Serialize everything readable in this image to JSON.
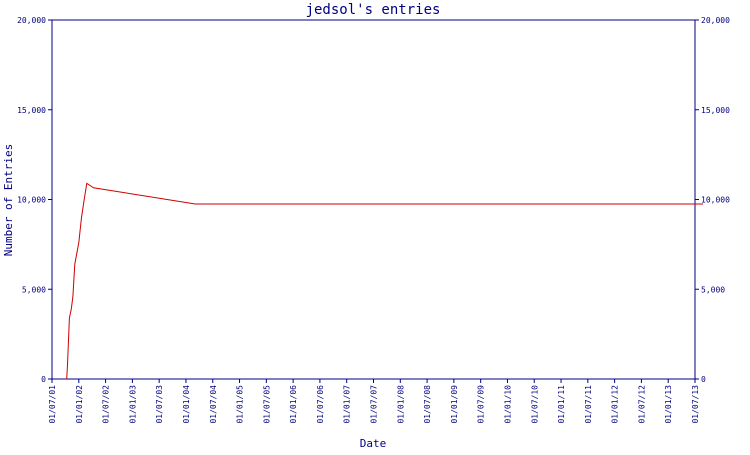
{
  "chart_data": {
    "type": "line",
    "title": "jedsol's entries",
    "xlabel": "Date",
    "ylabel": "Number of Entries",
    "ylim": [
      0,
      20000
    ],
    "y_ticks": [
      {
        "value": 0,
        "label": "0"
      },
      {
        "value": 5000,
        "label": "5,000"
      },
      {
        "value": 10000,
        "label": "10,000"
      },
      {
        "value": 15000,
        "label": "15,000"
      },
      {
        "value": 20000,
        "label": "20,000"
      }
    ],
    "x_ticks": [
      "01/07/01",
      "01/01/02",
      "01/07/02",
      "01/01/03",
      "01/07/03",
      "01/01/04",
      "01/07/04",
      "01/01/05",
      "01/07/05",
      "01/01/06",
      "01/07/06",
      "01/01/07",
      "01/07/07",
      "01/01/08",
      "01/07/08",
      "01/01/09",
      "01/07/09",
      "01/01/10",
      "01/07/10",
      "01/01/11",
      "01/07/11",
      "01/01/12",
      "01/07/12",
      "01/01/13",
      "01/07/13"
    ],
    "grid": false,
    "colors": {
      "axis": "#000080",
      "series": "#cc0000"
    },
    "series": [
      {
        "x": [
          0.55,
          0.58,
          0.65,
          0.72,
          0.78,
          0.85,
          1.0,
          1.1,
          1.2,
          1.3,
          1.45,
          1.55,
          5.35,
          24.3
        ],
        "y": [
          0,
          800,
          3400,
          3900,
          4600,
          6400,
          7600,
          9000,
          10000,
          10900,
          10750,
          10650,
          9750,
          9750
        ]
      }
    ]
  }
}
